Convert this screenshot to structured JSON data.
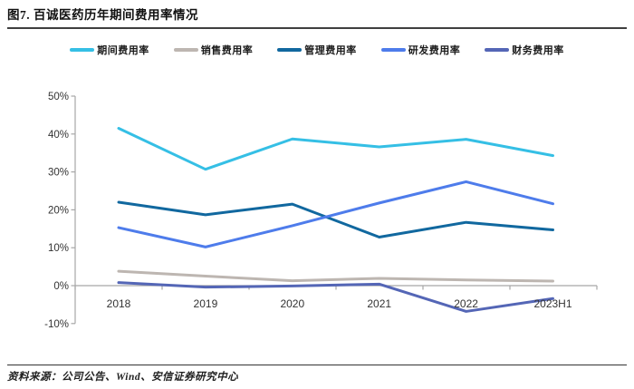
{
  "header": {
    "title": "图7. 百诚医药历年期间费用率情况"
  },
  "footer": {
    "source": "资料来源：公司公告、Wind、安信证券研究中心"
  },
  "chart_data": {
    "type": "line",
    "title": "图7. 百诚医药历年期间费用率情况",
    "categories": [
      "2018",
      "2019",
      "2020",
      "2021",
      "2022",
      "2023H1"
    ],
    "series": [
      {
        "name": "期间费用率",
        "color": "#35bfe5",
        "values": [
          41.5,
          30.7,
          38.7,
          36.6,
          38.6,
          34.3
        ]
      },
      {
        "name": "销售费用率",
        "color": "#bdb6b1",
        "values": [
          3.8,
          2.5,
          1.3,
          1.9,
          1.5,
          1.2
        ]
      },
      {
        "name": "管理费用率",
        "color": "#11689f",
        "values": [
          22.0,
          18.7,
          21.5,
          12.8,
          16.7,
          14.7
        ]
      },
      {
        "name": "研发费用率",
        "color": "#4e7ceb",
        "values": [
          15.3,
          10.2,
          15.8,
          21.8,
          27.4,
          21.6
        ]
      },
      {
        "name": "财务费用率",
        "color": "#5466b6",
        "values": [
          0.8,
          -0.4,
          -0.1,
          0.4,
          -6.8,
          -3.4
        ]
      }
    ],
    "xlabel": "",
    "ylabel": "",
    "y_axis": {
      "min": -10,
      "max": 50,
      "step": 10,
      "labels": [
        "50%",
        "40%",
        "30%",
        "20%",
        "10%",
        "0%",
        "-10%"
      ]
    },
    "legend_position": "top",
    "grid": false,
    "axis_color": "#a6a6a6",
    "label_color": "#333333",
    "source_note": "资料来源：公司公告、Wind、安信证券研究中心"
  }
}
